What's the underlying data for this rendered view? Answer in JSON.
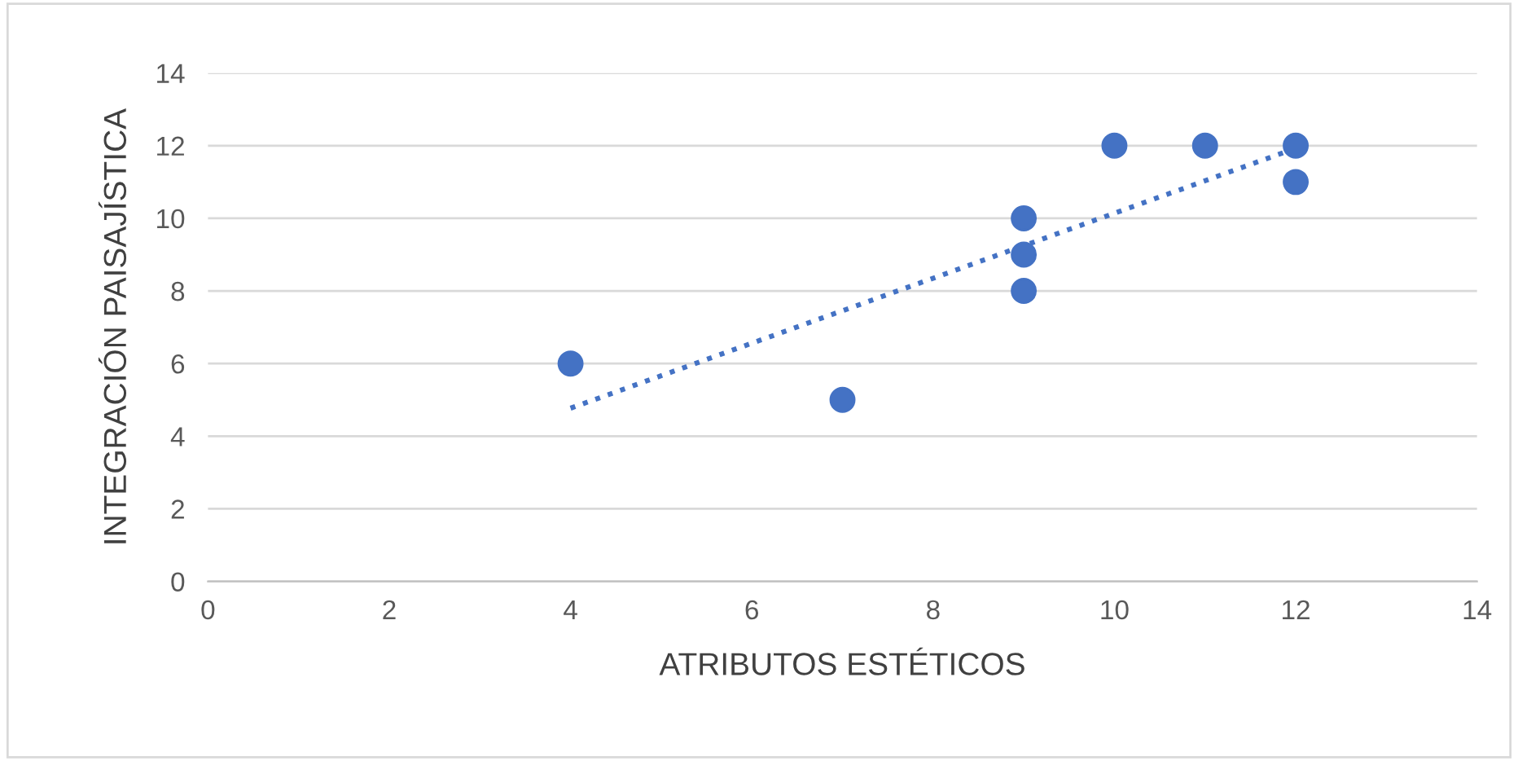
{
  "chart_data": {
    "type": "scatter",
    "xlabel": "ATRIBUTOS ESTÉTICOS",
    "ylabel": "INTEGRACIÓN PAISAJÍSTICA",
    "series": [
      {
        "color": "#4472c4",
        "marker": "circle",
        "x": [
          4,
          7,
          9,
          9,
          9,
          10,
          11,
          12,
          12
        ],
        "values": [
          6,
          5,
          10,
          9,
          8,
          12,
          12,
          12,
          11
        ]
      },
      {
        "type": "line",
        "color": "#4472c4",
        "line_style": "dotted",
        "marker": "none",
        "x": [
          4,
          12
        ],
        "values": [
          4.77,
          11.93
        ]
      }
    ],
    "xlim": [
      0,
      14
    ],
    "xticks": [
      0,
      2,
      4,
      6,
      8,
      10,
      12,
      14
    ],
    "ylim": [
      0,
      14
    ],
    "yticks": [
      0,
      2,
      4,
      6,
      8,
      10,
      12,
      14
    ],
    "grid": "y",
    "legend": false
  }
}
